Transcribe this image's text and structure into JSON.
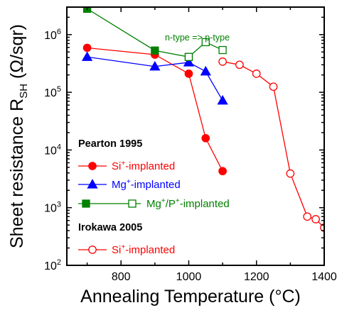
{
  "chart_data": {
    "type": "line",
    "xlabel": "Annealing Temperature (°C)",
    "ylabel_main": "Sheet resistance R",
    "ylabel_sub": "SH",
    "ylabel_unit": " (Ω/sqr)",
    "xlim": [
      640,
      1400
    ],
    "ylim": [
      100,
      3000000
    ],
    "yscale": "log",
    "x_ticks": [
      800,
      1000,
      1200,
      1400
    ],
    "y_ticks": [
      {
        "value": 100,
        "base": "10",
        "exp": "2"
      },
      {
        "value": 1000,
        "base": "10",
        "exp": "3"
      },
      {
        "value": 10000,
        "base": "10",
        "exp": "4"
      },
      {
        "value": 100000,
        "base": "10",
        "exp": "5"
      },
      {
        "value": 1000000,
        "base": "10",
        "exp": "6"
      }
    ],
    "annotation": "n-type => p-type",
    "legend_groups": [
      {
        "heading": "Pearton 1995",
        "entries": [
          {
            "prefix": "Si",
            "sup": "+",
            "suffix": "-implanted",
            "series": 0
          },
          {
            "prefix": "Mg",
            "sup": "+",
            "suffix": "-implanted",
            "series": 1
          },
          {
            "prefix": "Mg",
            "sup": "+",
            "mid": "/P",
            "sup2": "+",
            "suffix": "-implanted",
            "series": 2
          }
        ]
      },
      {
        "heading": "Irokawa 2005",
        "entries": [
          {
            "prefix": "Si",
            "sup": "+",
            "suffix": "-implanted",
            "series": 4
          }
        ]
      }
    ],
    "series": [
      {
        "color": "#ff0000",
        "marker": "circle",
        "filled": true,
        "x": [
          700,
          900,
          1000,
          1050,
          1100
        ],
        "y": [
          590000,
          450000,
          210000,
          16000,
          4300
        ]
      },
      {
        "color": "#0000ff",
        "marker": "triangle",
        "filled": true,
        "x": [
          700,
          900,
          1000,
          1050,
          1100
        ],
        "y": [
          410000,
          280000,
          330000,
          230000,
          72000
        ]
      },
      {
        "color": "#008000",
        "marker": "square",
        "filled": true,
        "x": [
          700,
          900,
          1000
        ],
        "y": [
          2800000,
          530000,
          410000
        ]
      },
      {
        "color": "#008000",
        "marker": "square",
        "filled": false,
        "x": [
          1000,
          1050,
          1100
        ],
        "y": [
          410000,
          740000,
          540000
        ]
      },
      {
        "color": "#ff0000",
        "marker": "circle",
        "filled": false,
        "x": [
          1100,
          1150,
          1200,
          1250,
          1300,
          1350,
          1375,
          1400
        ],
        "y": [
          340000,
          300000,
          210000,
          125000,
          3900,
          700,
          630,
          450
        ]
      }
    ]
  }
}
